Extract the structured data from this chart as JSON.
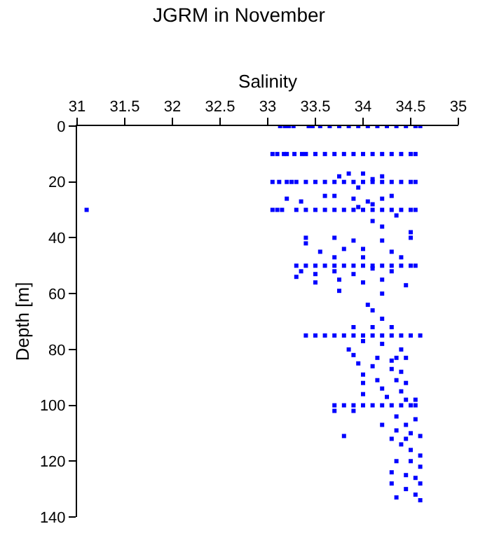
{
  "chart_data": {
    "type": "scatter",
    "title": "JGRM in November",
    "xlabel": "Salinity",
    "ylabel": "Depth [m]",
    "xlim": [
      31,
      35
    ],
    "xticks": [
      31,
      31.5,
      32,
      32.5,
      33,
      33.5,
      34,
      34.5,
      35
    ],
    "ylim": [
      140,
      0
    ],
    "yticks": [
      0,
      20,
      40,
      60,
      80,
      100,
      120,
      140
    ],
    "marker": "square",
    "series": [
      {
        "color": "#0000ff",
        "x": [
          33.13,
          33.18,
          33.22,
          33.27,
          33.43,
          33.47,
          33.55,
          33.65,
          33.75,
          33.85,
          33.95,
          34.05,
          34.15,
          34.25,
          34.35,
          34.45,
          34.55,
          34.6,
          33.05,
          33.1,
          33.17,
          33.2,
          33.28,
          33.36,
          33.4,
          33.5,
          33.6,
          33.7,
          33.8,
          33.9,
          34,
          34.1,
          34.2,
          34.3,
          34.4,
          34.5,
          34.55,
          33.05,
          33.12,
          33.2,
          33.25,
          33.3,
          33.4,
          33.5,
          33.6,
          33.7,
          33.8,
          33.9,
          34,
          34.1,
          34.2,
          34.3,
          34.4,
          34.5,
          34.55,
          31.1,
          33.05,
          33.1,
          33.15,
          33.3,
          33.4,
          33.5,
          33.6,
          33.7,
          33.8,
          33.9,
          34,
          34.1,
          34.2,
          34.3,
          34.4,
          34.5,
          34.55,
          33.85,
          34.0,
          33.75,
          34.2,
          33.95,
          34.1,
          33.2,
          33.35,
          33.6,
          33.7,
          33.9,
          34.05,
          34.2,
          34.3,
          33.95,
          34.1,
          34.35,
          34.1,
          34.2,
          34.5,
          33.4,
          33.7,
          33.9,
          34.2,
          34.5,
          33.4,
          33.55,
          33.8,
          34.0,
          34.3,
          33.7,
          34.0,
          34.4,
          33.3,
          33.4,
          33.5,
          33.6,
          33.7,
          33.8,
          33.9,
          34,
          34.1,
          34.2,
          34.3,
          34.4,
          34.5,
          34.55,
          33.3,
          33.35,
          33.5,
          33.7,
          33.9,
          34.1,
          34.3,
          33.5,
          33.75,
          34.0,
          34.2,
          34.45,
          33.75,
          34.2,
          34.05,
          34.1,
          34.2,
          33.9,
          34.1,
          34.3,
          33.4,
          33.5,
          33.6,
          33.7,
          33.8,
          33.9,
          34,
          34.1,
          34.2,
          34.3,
          34.4,
          34.5,
          34.6,
          34.0,
          34.2,
          34.4,
          33.85,
          33.9,
          34.15,
          34.35,
          34.45,
          34.3,
          33.95,
          34.1,
          34.3,
          34.4,
          34.0,
          34.15,
          34.35,
          34.45,
          34.0,
          34.2,
          34.4,
          34.0,
          34.25,
          34.45,
          34.55,
          33.7,
          33.8,
          33.9,
          34,
          34.1,
          34.2,
          34.3,
          34.4,
          34.5,
          34.55,
          33.7,
          33.9,
          34.35,
          34.55,
          34.2,
          34.45,
          34.35,
          34.5,
          33.8,
          34.3,
          34.45,
          34.6,
          34.4,
          34.5,
          34.6,
          34.35,
          34.5,
          34.6,
          34.3,
          34.45,
          34.55,
          34.3,
          34.6,
          34.45,
          34.55,
          34.35,
          34.6
        ],
        "values": [
          0,
          0,
          0,
          0,
          0,
          0,
          0,
          0,
          0,
          0,
          0,
          0,
          0,
          0,
          0,
          0,
          0,
          0,
          10,
          10,
          10,
          10,
          10,
          10,
          10,
          10,
          10,
          10,
          10,
          10,
          10,
          10,
          10,
          10,
          10,
          10,
          10,
          20,
          20,
          20,
          20,
          20,
          20,
          20,
          20,
          20,
          20,
          20,
          20,
          20,
          20,
          20,
          20,
          20,
          20,
          30,
          30,
          30,
          30,
          30,
          30,
          30,
          30,
          30,
          30,
          30,
          30,
          30,
          30,
          30,
          30,
          30,
          30,
          17,
          17,
          18,
          18,
          22,
          19,
          26,
          27,
          25,
          25,
          26,
          27,
          26,
          25,
          29,
          28,
          32,
          34,
          36,
          38,
          40,
          40,
          41,
          41,
          40,
          42,
          45,
          44,
          44,
          45,
          47,
          47,
          47,
          50,
          50,
          50,
          50,
          50,
          50,
          50,
          50,
          50,
          50,
          50,
          50,
          50,
          50,
          54,
          52,
          53,
          52,
          53,
          51,
          52,
          56,
          55,
          56,
          55,
          57,
          59,
          60,
          64,
          66,
          69,
          72,
          72,
          72,
          75,
          75,
          75,
          75,
          75,
          75,
          75,
          75,
          75,
          75,
          75,
          75,
          75,
          77,
          78,
          80,
          80,
          82,
          83,
          83,
          83,
          84,
          85,
          86,
          87,
          88,
          89,
          91,
          91,
          92,
          92,
          94,
          95,
          96,
          97,
          98,
          98,
          100,
          100,
          100,
          100,
          100,
          100,
          100,
          100,
          100,
          100,
          102,
          102,
          104,
          105,
          107,
          107,
          109,
          110,
          111,
          112,
          112,
          111,
          114,
          116,
          118,
          120,
          120,
          122,
          124,
          125,
          126,
          128,
          128,
          130,
          132,
          133,
          134
        ]
      }
    ]
  }
}
